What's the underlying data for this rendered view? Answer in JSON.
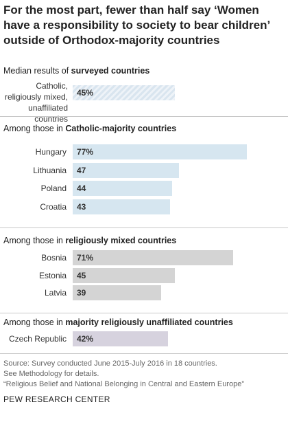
{
  "title": "For the most part, fewer than half say ‘Women have a responsibility to society to bear children’ outside of Orthodox-majority countries",
  "chart_data": {
    "type": "bar",
    "orientation": "horizontal",
    "xlim": [
      0,
      100
    ],
    "sections": [
      {
        "key": "median",
        "heading_plain": "Median results of ",
        "heading_bold": "surveyed countries",
        "color": "#d9e5ef",
        "hatched": true,
        "categories": [
          "Catholic, religiously mixed, unaffiliated countries"
        ],
        "values": [
          45
        ],
        "labels": [
          "45%"
        ]
      },
      {
        "key": "catholic",
        "heading_plain": "Among those in ",
        "heading_bold": "Catholic-majority countries",
        "color": "#d6e6f0",
        "hatched": false,
        "categories": [
          "Hungary",
          "Lithuania",
          "Poland",
          "Croatia"
        ],
        "values": [
          77,
          47,
          44,
          43
        ],
        "labels": [
          "77%",
          "47",
          "44",
          "43"
        ]
      },
      {
        "key": "mixed",
        "heading_plain": "Among those in ",
        "heading_bold": "religiously mixed countries",
        "color": "#d4d4d4",
        "hatched": false,
        "categories": [
          "Bosnia",
          "Estonia",
          "Latvia"
        ],
        "values": [
          71,
          45,
          39
        ],
        "labels": [
          "71%",
          "45",
          "39"
        ]
      },
      {
        "key": "unaffiliated",
        "heading_plain": "Among those in ",
        "heading_bold": "majority religiously unaffiliated countries",
        "color": "#d6d2de",
        "hatched": false,
        "categories": [
          "Czech Republic"
        ],
        "values": [
          42
        ],
        "labels": [
          "42%"
        ]
      }
    ]
  },
  "footer": {
    "source_1": "Source: Survey conducted June 2015-July 2016 in 18 countries.",
    "source_2": "See Methodology for details.",
    "source_3": "“Religious Belief and National Belonging in Central and Eastern Europe”",
    "credit": "PEW RESEARCH CENTER"
  }
}
